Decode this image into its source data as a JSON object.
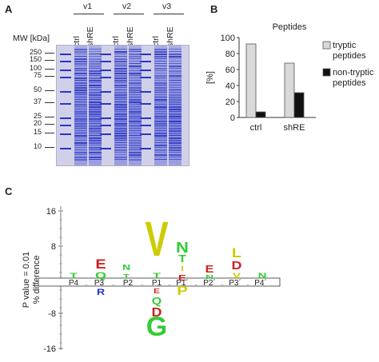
{
  "panelA": {
    "label": "A",
    "mw_label": "MW [kDa]",
    "groups": [
      "v1",
      "v2",
      "v3"
    ],
    "lane_labels": [
      "ctrl",
      "shRE",
      "ctrl",
      "shRE",
      "ctrl",
      "shRE"
    ],
    "markers": [
      "250",
      "150",
      "100",
      "75",
      "50",
      "37",
      "25",
      "20",
      "15",
      "10"
    ]
  },
  "panelB": {
    "label": "B",
    "chart_data": {
      "type": "bar",
      "title": "Peptides",
      "ylabel": "[%]",
      "ylim": [
        0,
        100
      ],
      "yticks": [
        "0",
        "20",
        "40",
        "60",
        "80",
        "100"
      ],
      "categories": [
        "ctrl",
        "shRE"
      ],
      "series": [
        {
          "name": "tryptic peptides",
          "values": [
            92,
            68
          ],
          "color": "#d9d9d9"
        },
        {
          "name": "non-tryptic peptides",
          "values": [
            7,
            31
          ],
          "color": "#111111"
        }
      ],
      "legend_lines": [
        [
          "tryptic",
          "peptides"
        ],
        [
          "non-tryptic",
          "peptides"
        ]
      ]
    }
  },
  "panelC": {
    "label": "C",
    "ylabel_lines": [
      "P value = 0.01",
      "% difference"
    ],
    "yticks": [
      "16",
      "8",
      "-8",
      "-16"
    ],
    "positions": [
      "P4",
      "P3",
      "P2",
      "P1",
      "P1´",
      "P2´",
      "P3´",
      "P4´"
    ],
    "colors": {
      "green": "#33cc33",
      "red": "#cc2222",
      "yellow": "#cccc00",
      "blue": "#2233cc"
    },
    "letters": [
      {
        "text": "T",
        "color": "green"
      },
      {
        "text": "E",
        "color": "red"
      },
      {
        "text": "Q",
        "color": "green"
      },
      {
        "text": "R",
        "color": "blue"
      },
      {
        "text": "N",
        "color": "green"
      },
      {
        "text": "T",
        "color": "green"
      },
      {
        "text": "V",
        "color": "yellow"
      },
      {
        "text": "T",
        "color": "green"
      },
      {
        "text": "E",
        "color": "red"
      },
      {
        "text": "Q",
        "color": "green"
      },
      {
        "text": "D",
        "color": "red"
      },
      {
        "text": "G",
        "color": "green"
      },
      {
        "text": "N",
        "color": "green"
      },
      {
        "text": "T",
        "color": "green"
      },
      {
        "text": "I",
        "color": "yellow"
      },
      {
        "text": "E",
        "color": "red"
      },
      {
        "text": "P",
        "color": "yellow"
      },
      {
        "text": "E",
        "color": "red"
      },
      {
        "text": "N",
        "color": "green"
      },
      {
        "text": "L",
        "color": "yellow"
      },
      {
        "text": "D",
        "color": "red"
      },
      {
        "text": "V",
        "color": "yellow"
      },
      {
        "text": "N",
        "color": "green"
      }
    ]
  }
}
